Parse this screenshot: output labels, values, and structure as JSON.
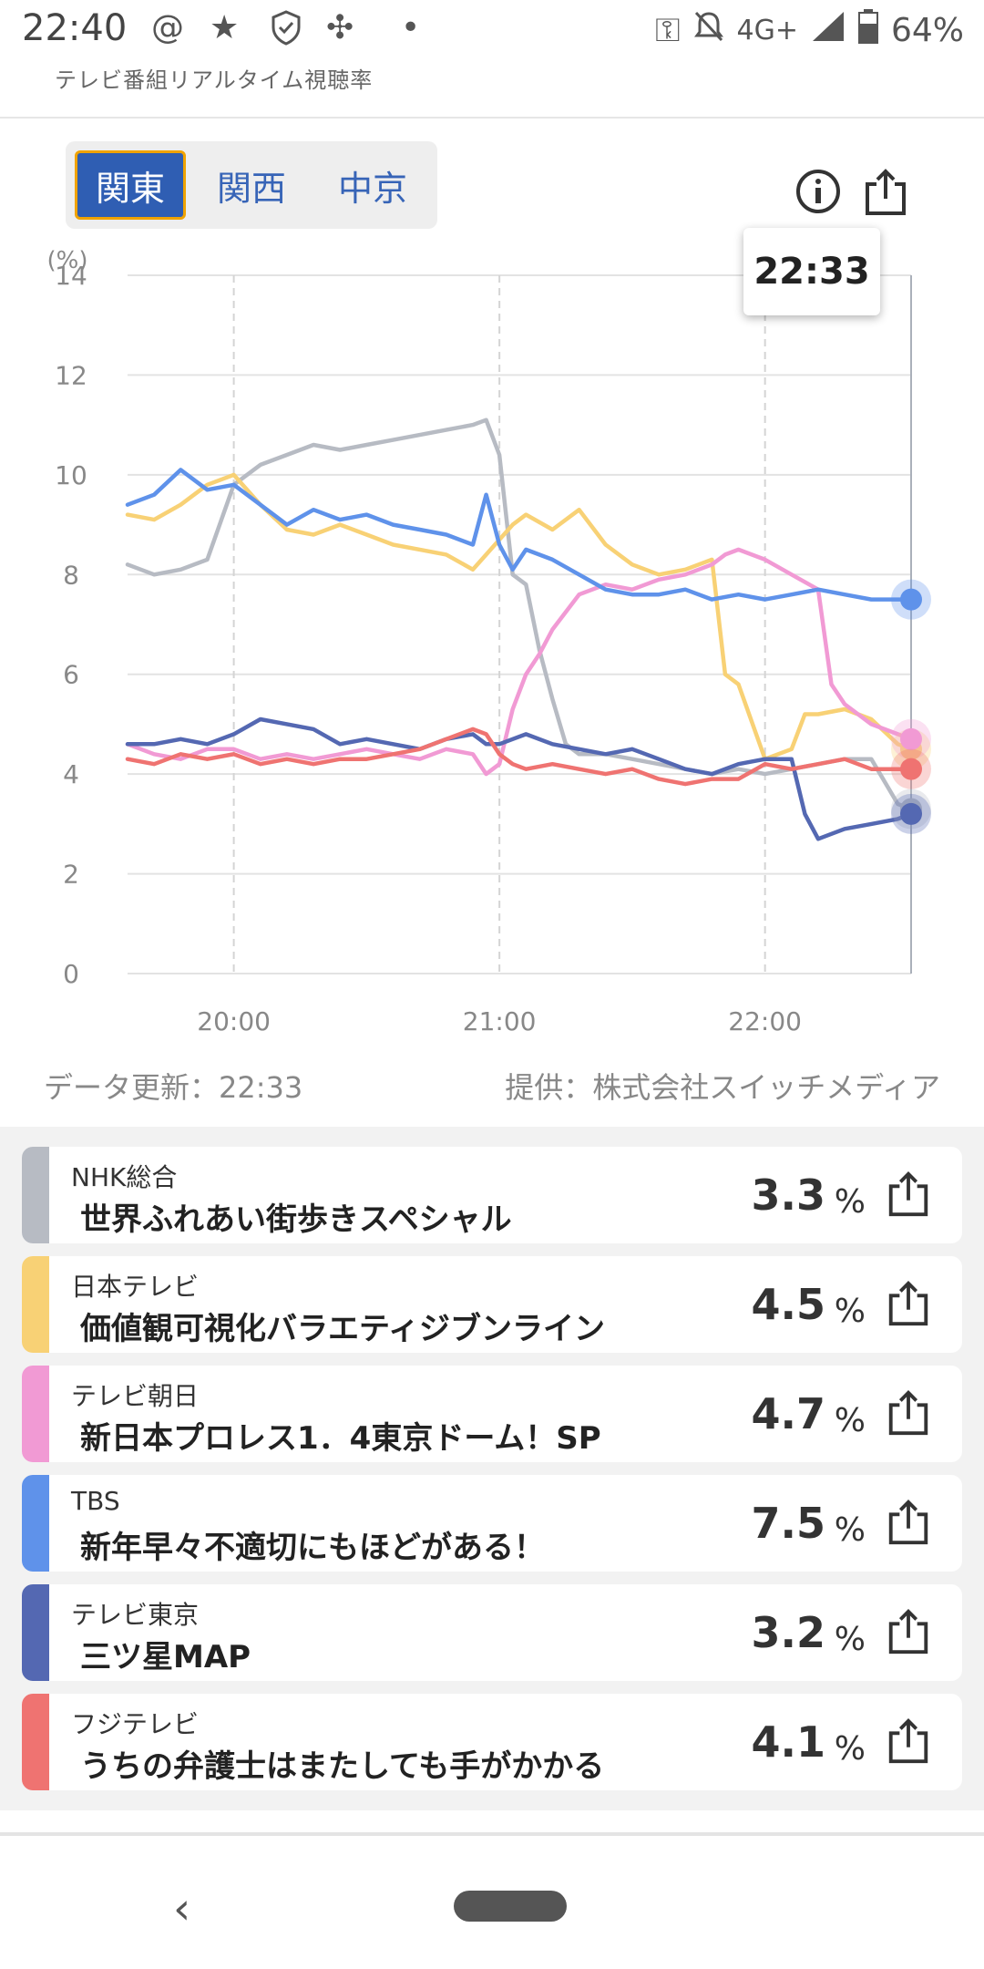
{
  "status_bar": {
    "time": "22:40",
    "network": "4G+",
    "battery": "64%"
  },
  "app": {
    "title": "テレビ番組リアルタイム視聴率"
  },
  "regions": [
    {
      "label": "関東",
      "active": true
    },
    {
      "label": "関西",
      "active": false
    },
    {
      "label": "中京",
      "active": false
    }
  ],
  "tooltip": {
    "time": "22:33"
  },
  "footer": {
    "data_update": "データ更新：22:33",
    "provider": "提供：株式会社スイッチメディア"
  },
  "chart_data": {
    "type": "line",
    "ylabel": "(%)",
    "ylim": [
      0,
      14
    ],
    "yticks": [
      "0",
      "2",
      "4",
      "6",
      "8",
      "10",
      "12",
      "14"
    ],
    "xlim": [
      19.6,
      22.55
    ],
    "xticks": [
      {
        "x": 20.0,
        "label": "20:00"
      },
      {
        "x": 21.0,
        "label": "21:00"
      },
      {
        "x": 22.0,
        "label": "22:00"
      }
    ],
    "cursor_x": 22.55,
    "series": [
      {
        "name": "NHK総合",
        "color": "#b7bbc3",
        "x": [
          19.6,
          19.7,
          19.8,
          19.9,
          20.0,
          20.1,
          20.2,
          20.3,
          20.4,
          20.5,
          20.6,
          20.7,
          20.8,
          20.9,
          20.95,
          21.0,
          21.05,
          21.1,
          21.15,
          21.2,
          21.25,
          21.3,
          21.4,
          21.5,
          21.6,
          21.7,
          21.8,
          21.9,
          22.0,
          22.1,
          22.2,
          22.3,
          22.4,
          22.5,
          22.55
        ],
        "y": [
          8.2,
          8.0,
          8.1,
          8.3,
          9.8,
          10.2,
          10.4,
          10.6,
          10.5,
          10.6,
          10.7,
          10.8,
          10.9,
          11.0,
          11.1,
          10.4,
          8.0,
          7.8,
          6.5,
          5.5,
          4.6,
          4.4,
          4.4,
          4.3,
          4.2,
          4.1,
          4.0,
          4.1,
          4.0,
          4.1,
          4.2,
          4.3,
          4.3,
          3.4,
          3.3
        ]
      },
      {
        "name": "日本テレビ",
        "color": "#f8d175",
        "x": [
          19.6,
          19.7,
          19.8,
          19.9,
          20.0,
          20.1,
          20.2,
          20.3,
          20.4,
          20.5,
          20.6,
          20.7,
          20.8,
          20.9,
          20.95,
          21.0,
          21.05,
          21.1,
          21.2,
          21.3,
          21.4,
          21.5,
          21.6,
          21.7,
          21.8,
          21.85,
          21.9,
          22.0,
          22.1,
          22.15,
          22.2,
          22.3,
          22.4,
          22.5,
          22.55
        ],
        "y": [
          9.2,
          9.1,
          9.4,
          9.8,
          10.0,
          9.4,
          8.9,
          8.8,
          9.0,
          8.8,
          8.6,
          8.5,
          8.4,
          8.1,
          8.4,
          8.7,
          9.0,
          9.2,
          8.9,
          9.3,
          8.6,
          8.2,
          8.0,
          8.1,
          8.3,
          6.0,
          5.8,
          4.3,
          4.5,
          5.2,
          5.2,
          5.3,
          5.1,
          4.6,
          4.5
        ]
      },
      {
        "name": "テレビ朝日",
        "color": "#f19ad4",
        "x": [
          19.6,
          19.7,
          19.8,
          19.9,
          20.0,
          20.1,
          20.2,
          20.3,
          20.4,
          20.5,
          20.6,
          20.7,
          20.8,
          20.9,
          20.95,
          21.0,
          21.05,
          21.1,
          21.15,
          21.2,
          21.3,
          21.4,
          21.5,
          21.6,
          21.7,
          21.8,
          21.85,
          21.9,
          22.0,
          22.1,
          22.2,
          22.25,
          22.3,
          22.4,
          22.5,
          22.55
        ],
        "y": [
          4.6,
          4.4,
          4.3,
          4.5,
          4.5,
          4.3,
          4.4,
          4.3,
          4.4,
          4.5,
          4.4,
          4.3,
          4.5,
          4.4,
          4.0,
          4.2,
          5.3,
          6.0,
          6.4,
          6.9,
          7.6,
          7.8,
          7.7,
          7.9,
          8.0,
          8.2,
          8.4,
          8.5,
          8.3,
          8.0,
          7.7,
          5.8,
          5.4,
          5.0,
          4.8,
          4.7
        ]
      },
      {
        "name": "TBS",
        "color": "#5f92ea",
        "x": [
          19.6,
          19.7,
          19.8,
          19.9,
          20.0,
          20.1,
          20.2,
          20.3,
          20.4,
          20.5,
          20.6,
          20.7,
          20.8,
          20.9,
          20.95,
          21.0,
          21.05,
          21.1,
          21.2,
          21.3,
          21.4,
          21.5,
          21.6,
          21.7,
          21.8,
          21.9,
          22.0,
          22.1,
          22.2,
          22.3,
          22.4,
          22.5,
          22.55
        ],
        "y": [
          9.4,
          9.6,
          10.1,
          9.7,
          9.8,
          9.4,
          9.0,
          9.3,
          9.1,
          9.2,
          9.0,
          8.9,
          8.8,
          8.6,
          9.6,
          8.6,
          8.1,
          8.5,
          8.3,
          8.0,
          7.7,
          7.6,
          7.6,
          7.7,
          7.5,
          7.6,
          7.5,
          7.6,
          7.7,
          7.6,
          7.5,
          7.5,
          7.5
        ]
      },
      {
        "name": "テレビ東京",
        "color": "#5468b2",
        "x": [
          19.6,
          19.7,
          19.8,
          19.9,
          20.0,
          20.1,
          20.2,
          20.3,
          20.4,
          20.5,
          20.6,
          20.7,
          20.8,
          20.9,
          20.95,
          21.0,
          21.05,
          21.1,
          21.2,
          21.3,
          21.4,
          21.5,
          21.6,
          21.7,
          21.8,
          21.9,
          22.0,
          22.1,
          22.15,
          22.2,
          22.25,
          22.3,
          22.4,
          22.5,
          22.55
        ],
        "y": [
          4.6,
          4.6,
          4.7,
          4.6,
          4.8,
          5.1,
          5.0,
          4.9,
          4.6,
          4.7,
          4.6,
          4.5,
          4.7,
          4.8,
          4.6,
          4.6,
          4.7,
          4.8,
          4.6,
          4.5,
          4.4,
          4.5,
          4.3,
          4.1,
          4.0,
          4.2,
          4.3,
          4.3,
          3.2,
          2.7,
          2.8,
          2.9,
          3.0,
          3.1,
          3.2
        ]
      },
      {
        "name": "フジテレビ",
        "color": "#ef7371",
        "x": [
          19.6,
          19.7,
          19.8,
          19.9,
          20.0,
          20.1,
          20.2,
          20.3,
          20.4,
          20.5,
          20.6,
          20.7,
          20.8,
          20.9,
          20.95,
          21.0,
          21.05,
          21.1,
          21.2,
          21.3,
          21.4,
          21.5,
          21.6,
          21.7,
          21.8,
          21.9,
          22.0,
          22.1,
          22.2,
          22.3,
          22.4,
          22.5,
          22.55
        ],
        "y": [
          4.3,
          4.2,
          4.4,
          4.3,
          4.4,
          4.2,
          4.3,
          4.2,
          4.3,
          4.3,
          4.4,
          4.5,
          4.7,
          4.9,
          4.8,
          4.4,
          4.2,
          4.1,
          4.2,
          4.1,
          4.0,
          4.1,
          3.9,
          3.8,
          3.9,
          3.9,
          4.2,
          4.1,
          4.2,
          4.3,
          4.1,
          4.1,
          4.1
        ]
      }
    ]
  },
  "programs": [
    {
      "channel": "NHK総合",
      "title": "世界ふれあい街歩きスペシャル",
      "rating": "3.3",
      "unit": "%",
      "color": "#b7bbc3"
    },
    {
      "channel": "日本テレビ",
      "title": "価値観可視化バラエティジブンライン",
      "rating": "4.5",
      "unit": "%",
      "color": "#f8d175"
    },
    {
      "channel": "テレビ朝日",
      "title": "新日本プロレス1．4東京ドーム！SP",
      "rating": "4.7",
      "unit": "%",
      "color": "#f19ad4"
    },
    {
      "channel": "TBS",
      "title": "新年早々不適切にもほどがある！",
      "rating": "7.5",
      "unit": "%",
      "color": "#5f92ea"
    },
    {
      "channel": "テレビ東京",
      "title": "三ツ星MAP",
      "rating": "3.2",
      "unit": "%",
      "color": "#5468b2"
    },
    {
      "channel": "フジテレビ",
      "title": "うちの弁護士はまたしても手がかかる",
      "rating": "4.1",
      "unit": "%",
      "color": "#ef7371"
    }
  ]
}
